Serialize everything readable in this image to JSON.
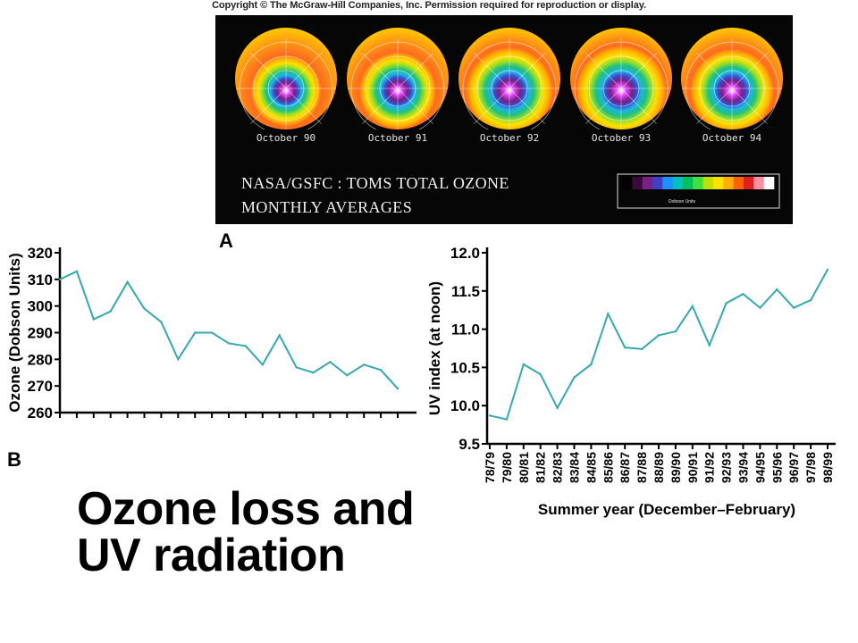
{
  "copyright": "Copyright © The McGraw-Hill Companies, Inc. Permission required for reproduction or display.",
  "panel_a": {
    "label": "A",
    "globes": [
      {
        "label": "October 90"
      },
      {
        "label": "October 91"
      },
      {
        "label": "October 92"
      },
      {
        "label": "October 93"
      },
      {
        "label": "October 94"
      }
    ],
    "caption_line1": "NASA/GSFC : TOMS TOTAL OZONE",
    "caption_line2": "MONTHLY AVERAGES",
    "scale_label": "Dobson Units",
    "scale_colors": [
      "#000000",
      "#3a0a3a",
      "#7a2080",
      "#4040c0",
      "#1e90ff",
      "#00c0c0",
      "#00c060",
      "#40e040",
      "#c0e000",
      "#ffe000",
      "#ffb000",
      "#ff6000",
      "#e02020",
      "#ff90a0",
      "#ffffff"
    ]
  },
  "panel_b": {
    "label": "B"
  },
  "title_line1": "Ozone loss and",
  "title_line2": "UV radiation",
  "chart_data": [
    {
      "type": "line",
      "ylabel": "Ozone (Dobson Units)",
      "xlabel": "",
      "ylim": [
        260,
        320
      ],
      "yticks": [
        260,
        270,
        280,
        290,
        300,
        310,
        320
      ],
      "color": "#35a8b0",
      "values": [
        310,
        313,
        295,
        298,
        309,
        299,
        294,
        280,
        290,
        290,
        286,
        285,
        278,
        289,
        277,
        275,
        279,
        274,
        278,
        276,
        269
      ]
    },
    {
      "type": "line",
      "ylabel": "UV index (at noon)",
      "xlabel": "Summer year (December–February)",
      "ylim": [
        9.5,
        12.0
      ],
      "yticks": [
        "9.5",
        "10.0",
        "10.5",
        "11.0",
        "11.5",
        "12.0"
      ],
      "color": "#35a8b0",
      "categories": [
        "78/79",
        "79/80",
        "80/81",
        "81/82",
        "82/83",
        "83/84",
        "84/85",
        "85/86",
        "86/87",
        "87/88",
        "88/89",
        "89/90",
        "90/91",
        "91/92",
        "92/93",
        "93/94",
        "94/95",
        "95/96",
        "96/97",
        "97/98",
        "98/99"
      ],
      "values": [
        9.87,
        9.82,
        10.54,
        10.41,
        9.97,
        10.37,
        10.54,
        11.2,
        10.76,
        10.74,
        10.92,
        10.97,
        11.3,
        10.79,
        11.34,
        11.46,
        11.28,
        11.52,
        11.28,
        11.38,
        11.78
      ]
    }
  ]
}
